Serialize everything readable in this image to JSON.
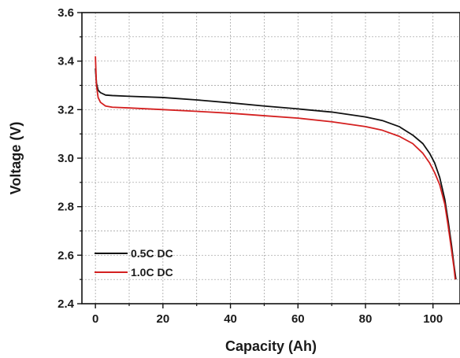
{
  "chart_data": {
    "type": "line",
    "title": "",
    "xlabel": "Capacity (Ah)",
    "ylabel": "Voltage (V)",
    "xlim": [
      -4,
      108
    ],
    "ylim": [
      2.4,
      3.6
    ],
    "grid": true,
    "legend_position": "bottom-left",
    "x_ticks": [
      0,
      20,
      40,
      60,
      80,
      100
    ],
    "y_ticks": [
      2.4,
      2.6,
      2.8,
      3.0,
      3.2,
      3.4,
      3.6
    ],
    "x_tick_labels": [
      "0",
      "20",
      "40",
      "60",
      "80",
      "100"
    ],
    "y_tick_labels": [
      "2.4",
      "2.6",
      "2.8",
      "3.0",
      "3.2",
      "3.4",
      "3.6"
    ],
    "series": [
      {
        "name": "0.5C DC",
        "color": "#111111",
        "points": [
          [
            0,
            3.37
          ],
          [
            0.3,
            3.31
          ],
          [
            0.8,
            3.28
          ],
          [
            1.5,
            3.27
          ],
          [
            3,
            3.26
          ],
          [
            5,
            3.258
          ],
          [
            10,
            3.255
          ],
          [
            20,
            3.25
          ],
          [
            30,
            3.24
          ],
          [
            40,
            3.228
          ],
          [
            50,
            3.215
          ],
          [
            60,
            3.203
          ],
          [
            70,
            3.19
          ],
          [
            80,
            3.17
          ],
          [
            85,
            3.155
          ],
          [
            90,
            3.13
          ],
          [
            94,
            3.095
          ],
          [
            97,
            3.06
          ],
          [
            99,
            3.02
          ],
          [
            100.5,
            2.98
          ],
          [
            102,
            2.92
          ],
          [
            103.5,
            2.83
          ],
          [
            104.5,
            2.74
          ],
          [
            105.5,
            2.64
          ],
          [
            106.2,
            2.56
          ],
          [
            106.8,
            2.5
          ]
        ]
      },
      {
        "name": "1.0C DC",
        "color": "#d42020",
        "points": [
          [
            0,
            3.42
          ],
          [
            0.3,
            3.3
          ],
          [
            0.8,
            3.25
          ],
          [
            1.5,
            3.23
          ],
          [
            3,
            3.215
          ],
          [
            5,
            3.21
          ],
          [
            10,
            3.207
          ],
          [
            20,
            3.2
          ],
          [
            30,
            3.193
          ],
          [
            40,
            3.185
          ],
          [
            50,
            3.175
          ],
          [
            60,
            3.165
          ],
          [
            70,
            3.15
          ],
          [
            80,
            3.13
          ],
          [
            85,
            3.115
          ],
          [
            90,
            3.09
          ],
          [
            94,
            3.06
          ],
          [
            97,
            3.02
          ],
          [
            99,
            2.98
          ],
          [
            100.5,
            2.94
          ],
          [
            102,
            2.89
          ],
          [
            103.5,
            2.81
          ],
          [
            104.5,
            2.72
          ],
          [
            105.5,
            2.62
          ],
          [
            106.2,
            2.55
          ],
          [
            106.6,
            2.5
          ]
        ]
      }
    ]
  }
}
